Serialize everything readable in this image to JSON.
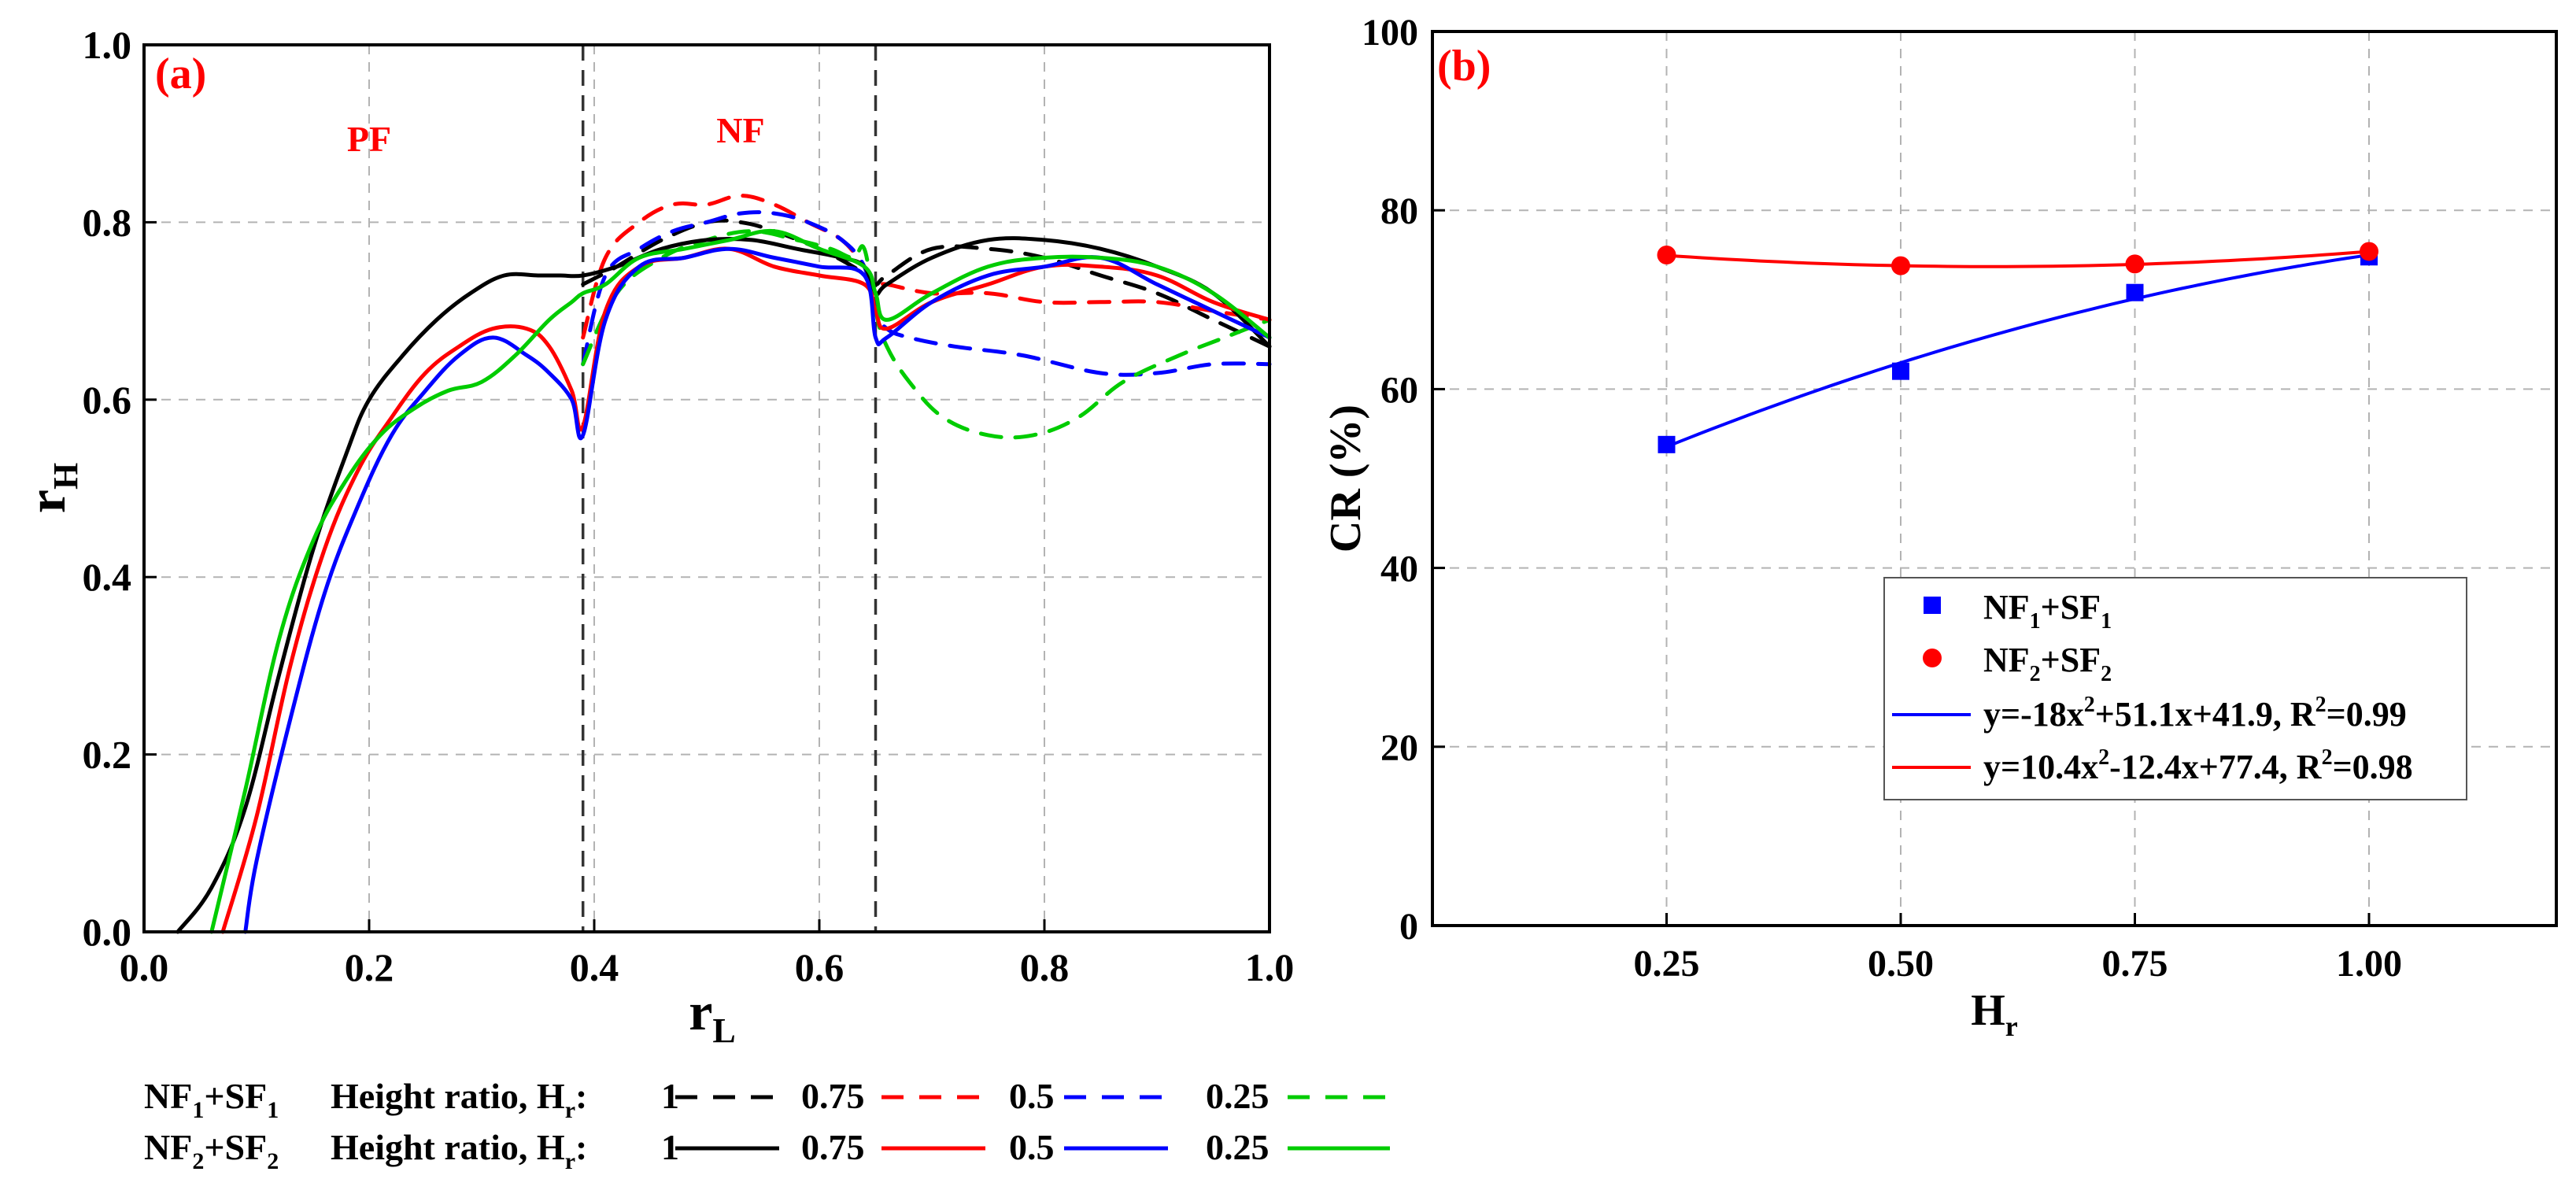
{
  "colors": {
    "hr_1": "#000000",
    "hr_075": "#ff0000",
    "hr_05": "#0000ff",
    "hr_025": "#00cc00",
    "annotation": "#ff0000",
    "vline": "#333333",
    "grid": "#b3b3b3",
    "marker_nf1": "#0000ff",
    "marker_nf2": "#ff0000"
  },
  "chart_data": [
    {
      "type": "line",
      "panel_label": "(a)",
      "xlabel_base": "r",
      "xlabel_sub": "L",
      "ylabel_base": "r",
      "ylabel_sub": "H",
      "xlim": [
        0,
        1.0
      ],
      "ylim": [
        0,
        1.0
      ],
      "xticks": [
        "0.0",
        "0.2",
        "0.4",
        "0.6",
        "0.8",
        "1.0"
      ],
      "yticks": [
        "0.0",
        "0.2",
        "0.4",
        "0.6",
        "0.8",
        "1.0"
      ],
      "grid": true,
      "vlines": [
        0.39,
        0.65
      ],
      "annotations": [
        {
          "text": "PF",
          "x": 0.2,
          "y": 0.88
        },
        {
          "text": "NF",
          "x": 0.53,
          "y": 0.89
        }
      ],
      "series": [
        {
          "name": "NF1+SF1, Hr=1",
          "hr": "1",
          "config": "NF1+SF1",
          "dash": "dashed",
          "color_key": "hr_1",
          "x": [
            0.39,
            0.42,
            0.46,
            0.5,
            0.53,
            0.56,
            0.6,
            0.63,
            0.64,
            0.65,
            0.66,
            0.7,
            0.75,
            0.8,
            0.85,
            0.9,
            0.95,
            1.0
          ],
          "y": [
            0.73,
            0.75,
            0.78,
            0.8,
            0.8,
            0.79,
            0.77,
            0.75,
            0.74,
            0.73,
            0.74,
            0.77,
            0.77,
            0.76,
            0.74,
            0.72,
            0.69,
            0.66
          ]
        },
        {
          "name": "NF1+SF1, Hr=0.75",
          "hr": "0.75",
          "config": "NF1+SF1",
          "dash": "dashed",
          "color_key": "hr_075",
          "x": [
            0.39,
            0.41,
            0.44,
            0.47,
            0.5,
            0.53,
            0.56,
            0.59,
            0.62,
            0.64,
            0.65,
            0.66,
            0.7,
            0.75,
            0.8,
            0.85,
            0.9,
            0.95,
            1.0
          ],
          "y": [
            0.67,
            0.76,
            0.8,
            0.82,
            0.82,
            0.83,
            0.82,
            0.8,
            0.78,
            0.75,
            0.73,
            0.73,
            0.72,
            0.72,
            0.71,
            0.71,
            0.71,
            0.7,
            0.69
          ]
        },
        {
          "name": "NF1+SF1, Hr=0.5",
          "hr": "0.5",
          "config": "NF1+SF1",
          "dash": "dashed",
          "color_key": "hr_05",
          "x": [
            0.39,
            0.41,
            0.44,
            0.47,
            0.5,
            0.53,
            0.56,
            0.59,
            0.62,
            0.64,
            0.65,
            0.66,
            0.68,
            0.72,
            0.78,
            0.85,
            0.9,
            0.95,
            1.0
          ],
          "y": [
            0.64,
            0.74,
            0.77,
            0.79,
            0.8,
            0.81,
            0.81,
            0.8,
            0.78,
            0.75,
            0.7,
            0.68,
            0.67,
            0.66,
            0.65,
            0.63,
            0.63,
            0.64,
            0.64
          ]
        },
        {
          "name": "NF1+SF1, Hr=0.25",
          "hr": "0.25",
          "config": "NF1+SF1",
          "dash": "dashed",
          "color_key": "hr_025",
          "x": [
            0.39,
            0.42,
            0.46,
            0.5,
            0.54,
            0.58,
            0.61,
            0.63,
            0.64,
            0.65,
            0.66,
            0.68,
            0.71,
            0.75,
            0.79,
            0.83,
            0.87,
            0.92,
            0.96,
            1.0
          ],
          "y": [
            0.64,
            0.72,
            0.76,
            0.78,
            0.79,
            0.78,
            0.77,
            0.76,
            0.77,
            0.7,
            0.66,
            0.62,
            0.58,
            0.56,
            0.56,
            0.58,
            0.62,
            0.65,
            0.67,
            0.69
          ]
        },
        {
          "name": "NF2+SF2, Hr=1",
          "hr": "1",
          "config": "NF2+SF2",
          "dash": "solid",
          "color_key": "hr_1",
          "x": [
            0.03,
            0.06,
            0.09,
            0.12,
            0.15,
            0.18,
            0.2,
            0.23,
            0.26,
            0.29,
            0.32,
            0.35,
            0.37,
            0.39,
            0.42,
            0.46,
            0.5,
            0.54,
            0.58,
            0.62,
            0.64,
            0.65,
            0.66,
            0.7,
            0.75,
            0.8,
            0.85,
            0.9,
            0.95,
            1.0
          ],
          "y": [
            0.0,
            0.05,
            0.14,
            0.29,
            0.43,
            0.54,
            0.6,
            0.65,
            0.69,
            0.72,
            0.74,
            0.74,
            0.74,
            0.74,
            0.75,
            0.77,
            0.78,
            0.78,
            0.77,
            0.76,
            0.75,
            0.72,
            0.73,
            0.76,
            0.78,
            0.78,
            0.77,
            0.75,
            0.72,
            0.66
          ]
        },
        {
          "name": "NF2+SF2, Hr=0.75",
          "hr": "0.75",
          "config": "NF2+SF2",
          "dash": "solid",
          "color_key": "hr_075",
          "x": [
            0.07,
            0.1,
            0.13,
            0.16,
            0.19,
            0.22,
            0.25,
            0.28,
            0.31,
            0.34,
            0.36,
            0.38,
            0.39,
            0.41,
            0.44,
            0.48,
            0.52,
            0.56,
            0.6,
            0.64,
            0.65,
            0.66,
            0.7,
            0.75,
            0.8,
            0.85,
            0.9,
            0.95,
            1.0
          ],
          "y": [
            0.0,
            0.13,
            0.3,
            0.43,
            0.52,
            0.58,
            0.63,
            0.66,
            0.68,
            0.68,
            0.66,
            0.61,
            0.57,
            0.7,
            0.75,
            0.76,
            0.77,
            0.75,
            0.74,
            0.73,
            0.7,
            0.68,
            0.71,
            0.73,
            0.75,
            0.75,
            0.74,
            0.71,
            0.69
          ]
        },
        {
          "name": "NF2+SF2, Hr=0.5",
          "hr": "0.5",
          "config": "NF2+SF2",
          "dash": "solid",
          "color_key": "hr_05",
          "x": [
            0.09,
            0.1,
            0.13,
            0.16,
            0.19,
            0.22,
            0.25,
            0.28,
            0.31,
            0.34,
            0.36,
            0.38,
            0.39,
            0.41,
            0.44,
            0.48,
            0.52,
            0.56,
            0.6,
            0.64,
            0.65,
            0.66,
            0.7,
            0.75,
            0.8,
            0.85,
            0.9,
            0.95,
            1.0
          ],
          "y": [
            0.0,
            0.08,
            0.24,
            0.38,
            0.48,
            0.56,
            0.61,
            0.65,
            0.67,
            0.65,
            0.63,
            0.6,
            0.56,
            0.69,
            0.75,
            0.76,
            0.77,
            0.76,
            0.75,
            0.74,
            0.67,
            0.67,
            0.71,
            0.74,
            0.75,
            0.76,
            0.73,
            0.7,
            0.67
          ]
        },
        {
          "name": "NF2+SF2, Hr=0.25",
          "hr": "0.25",
          "config": "NF2+SF2",
          "dash": "solid",
          "color_key": "hr_025",
          "x": [
            0.06,
            0.09,
            0.12,
            0.15,
            0.18,
            0.21,
            0.24,
            0.27,
            0.3,
            0.33,
            0.36,
            0.38,
            0.39,
            0.41,
            0.44,
            0.48,
            0.52,
            0.56,
            0.6,
            0.64,
            0.65,
            0.66,
            0.7,
            0.75,
            0.8,
            0.85,
            0.9,
            0.95,
            1.0
          ],
          "y": [
            0.0,
            0.16,
            0.33,
            0.44,
            0.51,
            0.56,
            0.59,
            0.61,
            0.62,
            0.65,
            0.69,
            0.71,
            0.72,
            0.73,
            0.76,
            0.77,
            0.78,
            0.79,
            0.77,
            0.75,
            0.72,
            0.69,
            0.72,
            0.75,
            0.76,
            0.76,
            0.75,
            0.72,
            0.67
          ]
        }
      ],
      "legend": {
        "rows": [
          {
            "config_base": "NF",
            "config_sub1": "1",
            "config_mid": "+SF",
            "config_sub2": "1",
            "dash": "dashed"
          },
          {
            "config_base": "NF",
            "config_sub1": "2",
            "config_mid": "+SF",
            "config_sub2": "2",
            "dash": "solid"
          }
        ],
        "label_base": "Height ratio, H",
        "label_sub": "r",
        "label_colon": ":",
        "values": [
          {
            "text": "1",
            "color_key": "hr_1"
          },
          {
            "text": "0.75",
            "color_key": "hr_075"
          },
          {
            "text": "0.5",
            "color_key": "hr_05"
          },
          {
            "text": "0.25",
            "color_key": "hr_025"
          }
        ]
      }
    },
    {
      "type": "scatter",
      "panel_label": "(b)",
      "xlabel_base": "H",
      "xlabel_sub": "r",
      "ylabel": "CR (%)",
      "xlim": [
        0.0,
        1.2
      ],
      "ylim": [
        0,
        100
      ],
      "xticks": [
        {
          "value": 0.25,
          "label": "0.25"
        },
        {
          "value": 0.5,
          "label": "0.50"
        },
        {
          "value": 0.75,
          "label": "0.75"
        },
        {
          "value": 1.0,
          "label": "1.00"
        }
      ],
      "yticks": [
        {
          "value": 0,
          "label": "0"
        },
        {
          "value": 20,
          "label": "20"
        },
        {
          "value": 40,
          "label": "40"
        },
        {
          "value": 60,
          "label": "60"
        },
        {
          "value": 80,
          "label": "80"
        },
        {
          "value": 100,
          "label": "100"
        }
      ],
      "grid": true,
      "series": [
        {
          "name": "NF1+SF1",
          "marker": "square",
          "color_key": "marker_nf1",
          "x": [
            0.25,
            0.5,
            0.75,
            1.0
          ],
          "y": [
            53.8,
            62.0,
            70.8,
            74.8
          ]
        },
        {
          "name": "NF2+SF2",
          "marker": "circle",
          "color_key": "marker_nf2",
          "x": [
            0.25,
            0.5,
            0.75,
            1.0
          ],
          "y": [
            75.0,
            73.8,
            74.0,
            75.4
          ]
        }
      ],
      "fits": [
        {
          "color_key": "marker_nf1",
          "a": -18,
          "b": 51.1,
          "c": 41.9,
          "x_range": [
            0.25,
            1.0
          ]
        },
        {
          "color_key": "marker_nf2",
          "a": 10.4,
          "b": -12.4,
          "c": 77.4,
          "x_range": [
            0.25,
            1.0
          ]
        }
      ],
      "legend": {
        "entries": [
          {
            "kind": "square",
            "color_key": "marker_nf1",
            "base": "NF",
            "sub1": "1",
            "mid": "+SF",
            "sub2": "1"
          },
          {
            "kind": "circle",
            "color_key": "marker_nf2",
            "base": "NF",
            "sub1": "2",
            "mid": "+SF",
            "sub2": "2"
          },
          {
            "kind": "line",
            "color_key": "marker_nf1",
            "pre": "y=-18x",
            "sup": "2",
            "post": "+51.1x+41.9, R",
            "sup2": "2",
            "tail": "=0.99"
          },
          {
            "kind": "line",
            "color_key": "marker_nf2",
            "pre": "y=10.4x",
            "sup": "2",
            "post": "-12.4x+77.4, R",
            "sup2": "2",
            "tail": "=0.98"
          }
        ]
      }
    }
  ]
}
